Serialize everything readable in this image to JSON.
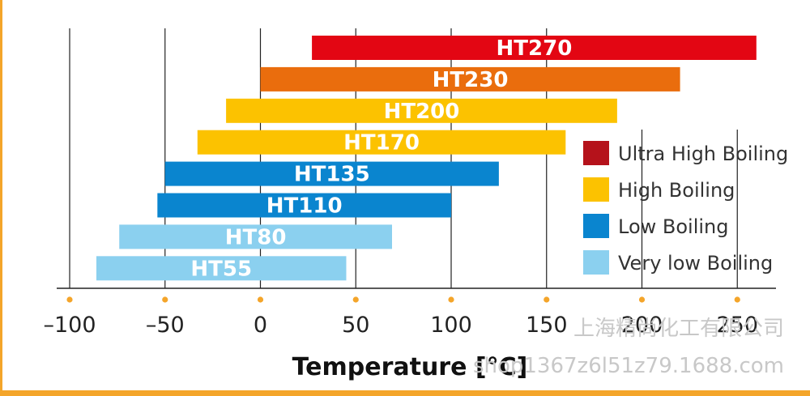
{
  "colors": {
    "frame": "#f4a52a",
    "ultra_high": "#e30613",
    "ultra_high_legend": "#b5121b",
    "ht230": "#ea6d0d",
    "high": "#fcc200",
    "low": "#0a85cf",
    "very_low": "#8bd0ef",
    "tick_dot": "#f4a52a",
    "grid": "#222222"
  },
  "chart_data": {
    "type": "bar",
    "orientation": "horizontal-range",
    "xlabel": "Temperature [°C]",
    "xlim": [
      -100,
      260
    ],
    "xticks": [
      -100,
      -50,
      0,
      50,
      100,
      150,
      200,
      250
    ],
    "xtick_labels": [
      "–100",
      "–50",
      "0",
      "50",
      "100",
      "150",
      "200",
      "250"
    ],
    "grid": "vertical",
    "legend_position": "right",
    "bars": [
      {
        "label": "HT270",
        "min": 27,
        "max": 260,
        "class": "ultra_high",
        "color": "#e30613"
      },
      {
        "label": "HT230",
        "min": 0,
        "max": 220,
        "class": "ultra_high",
        "color": "#ea6d0d"
      },
      {
        "label": "HT200",
        "min": -18,
        "max": 187,
        "class": "high",
        "color": "#fcc200"
      },
      {
        "label": "HT170",
        "min": -33,
        "max": 160,
        "class": "high",
        "color": "#fcc200"
      },
      {
        "label": "HT135",
        "min": -50,
        "max": 125,
        "class": "low",
        "color": "#0a85cf"
      },
      {
        "label": "HT110",
        "min": -54,
        "max": 100,
        "class": "low",
        "color": "#0a85cf"
      },
      {
        "label": "HT80",
        "min": -74,
        "max": 69,
        "class": "very_low",
        "color": "#8bd0ef"
      },
      {
        "label": "HT55",
        "min": -86,
        "max": 45,
        "class": "very_low",
        "color": "#8bd0ef"
      }
    ],
    "legend": [
      {
        "label": "Ultra High Boiling",
        "color": "#b5121b"
      },
      {
        "label": "High Boiling",
        "color": "#fcc200"
      },
      {
        "label": "Low Boiling",
        "color": "#0a85cf"
      },
      {
        "label": "Very low Boiling",
        "color": "#8bd0ef"
      }
    ]
  },
  "watermark": {
    "line1": "上海精尚化工有限公司",
    "line2": "shop1367z6l51z79.1688.com"
  }
}
